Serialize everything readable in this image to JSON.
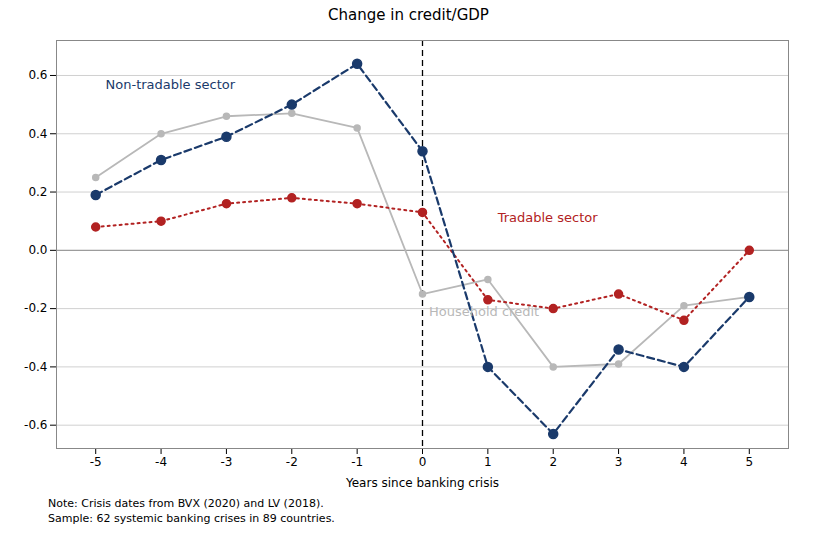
{
  "chart_data": {
    "type": "line",
    "title": "Change in credit/GDP",
    "xlabel": "Years since banking crisis",
    "x": [
      -5,
      -4,
      -3,
      -2,
      -1,
      0,
      1,
      2,
      3,
      4,
      5
    ],
    "series": [
      {
        "name": "Household credit",
        "color": "#b8b8b8",
        "marker": "circle",
        "line_style": "solid",
        "values": [
          0.25,
          0.4,
          0.46,
          0.47,
          0.42,
          -0.15,
          -0.1,
          -0.4,
          -0.39,
          -0.19,
          -0.16
        ]
      },
      {
        "name": "Tradable sector",
        "color": "#b22222",
        "marker": "circle",
        "line_style": "dotted",
        "values": [
          0.08,
          0.1,
          0.16,
          0.18,
          0.16,
          0.13,
          -0.17,
          -0.2,
          -0.15,
          -0.24,
          0.0
        ]
      },
      {
        "name": "Non-tradable sector",
        "color": "#1a3a6b",
        "marker": "circle",
        "line_style": "dashed",
        "values": [
          0.19,
          0.31,
          0.39,
          0.5,
          0.64,
          0.34,
          -0.4,
          -0.63,
          -0.34,
          -0.4,
          -0.16
        ]
      }
    ],
    "annotations": [
      {
        "text": "Non-tradable sector",
        "x": -4.85,
        "y": 0.555,
        "color": "#1a3a6b"
      },
      {
        "text": "Tradable sector",
        "x": 1.15,
        "y": 0.13,
        "color": "#b22222"
      },
      {
        "text": "Household credit",
        "x": 0.1,
        "y": -0.195,
        "color": "#b8b8b8"
      }
    ],
    "reference_lines": {
      "y": [
        0
      ],
      "x": [
        0
      ]
    },
    "notes": [
      "Note: Crisis dates from BVX (2020) and LV (2018).",
      "Sample: 62 systemic banking crises in 89 countries."
    ],
    "xlim": [
      -5.6,
      5.6
    ],
    "ylim": [
      -0.68,
      0.72
    ],
    "xticks": [
      -5,
      -4,
      -3,
      -2,
      -1,
      0,
      1,
      2,
      3,
      4,
      5
    ],
    "yticks": [
      -0.6,
      -0.4,
      -0.2,
      {
        "value": 0,
        "label": "0.0"
      },
      0.2,
      0.4,
      0.6
    ],
    "grid": "y",
    "legend": false
  }
}
